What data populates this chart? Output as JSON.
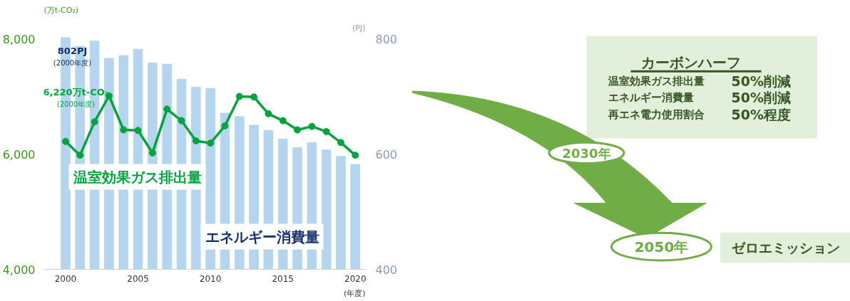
{
  "chart_data": {
    "type": "bar",
    "x": [
      2000,
      2001,
      2002,
      2003,
      2004,
      2005,
      2006,
      2007,
      2008,
      2009,
      2010,
      2011,
      2012,
      2013,
      2014,
      2015,
      2016,
      2017,
      2018,
      2019,
      2020
    ],
    "series": [
      {
        "name": "エネルギー消費量",
        "axis": "y2",
        "color": "#b4d5ed",
        "values": [
          802,
          787,
          796,
          766,
          771,
          782,
          758,
          756,
          730,
          716,
          714,
          671,
          665,
          650,
          641,
          626,
          611,
          620,
          607,
          596,
          582
        ]
      },
      {
        "name": "温室効果ガス排出量",
        "type": "line",
        "axis": "y",
        "color": "#00a33e",
        "marker": "circle",
        "values": [
          6220,
          5980,
          6560,
          7010,
          6420,
          6410,
          6020,
          6780,
          6580,
          6230,
          6190,
          6490,
          7000,
          6990,
          6700,
          6580,
          6420,
          6480,
          6390,
          6200,
          5980
        ]
      }
    ],
    "xlim": [
      1998.5,
      2020.7
    ],
    "xticks": [
      2000,
      2005,
      2010,
      2015,
      2020
    ],
    "xlabel": "(年度)",
    "ylim": [
      4000,
      8050
    ],
    "yticks": [
      {
        "value": 4000,
        "label": "4,000"
      },
      {
        "value": 6000,
        "label": "6,000"
      },
      {
        "value": 8000,
        "label": "8,000"
      }
    ],
    "ylabel": "(万t-CO₂)",
    "y2lim": [
      400,
      805
    ],
    "y2ticks": [
      400,
      600,
      800
    ],
    "y2label": "(PJ)",
    "grid": false,
    "legend": false,
    "annotations": [
      "802PJ\n(2000年度)",
      "6,220万t-CO₂\n(2000年度)",
      "カーボンハーフ",
      "温室効果ガス排出量",
      "50%削減",
      "エネルギー消費量",
      "50%削減",
      "再エネ電力使用割合",
      "50%程度",
      "2030年",
      "2050年",
      "ゼロエミッション"
    ]
  }
}
